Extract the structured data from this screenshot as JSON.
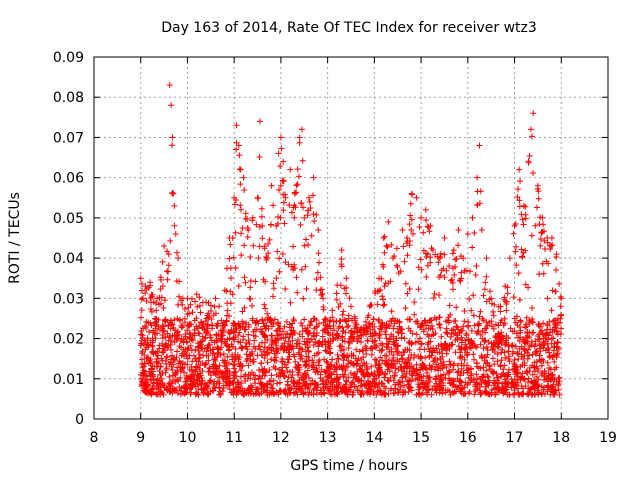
{
  "chart_data": {
    "type": "scatter",
    "title": "Day 163 of 2014, Rate Of TEC Index for receiver wtz3",
    "xlabel": "GPS time / hours",
    "ylabel": "ROTI / TECUs",
    "xlim": [
      8,
      19
    ],
    "ylim": [
      0,
      0.09
    ],
    "xticks": [
      "8",
      "9",
      "10",
      "11",
      "12",
      "13",
      "14",
      "15",
      "16",
      "17",
      "18",
      "19"
    ],
    "yticks": [
      "0",
      "0.01",
      "0.02",
      "0.03",
      "0.04",
      "0.05",
      "0.06",
      "0.07",
      "0.08",
      "0.09"
    ],
    "grid": true,
    "marker": "+",
    "color": "#ff0000",
    "series": [
      {
        "name": "ROTI",
        "peaks": [
          [
            9.0,
            0.035
          ],
          [
            9.1,
            0.033
          ],
          [
            9.2,
            0.034
          ],
          [
            9.35,
            0.03
          ],
          [
            9.5,
            0.043
          ],
          [
            9.6,
            0.041
          ],
          [
            9.62,
            0.083
          ],
          [
            9.65,
            0.078
          ],
          [
            9.68,
            0.07
          ],
          [
            9.7,
            0.056
          ],
          [
            9.72,
            0.053
          ],
          [
            9.75,
            0.046
          ],
          [
            9.8,
            0.04
          ],
          [
            9.9,
            0.03
          ],
          [
            10.0,
            0.03
          ],
          [
            10.2,
            0.031
          ],
          [
            10.4,
            0.029
          ],
          [
            10.6,
            0.03
          ],
          [
            10.8,
            0.032
          ],
          [
            10.9,
            0.045
          ],
          [
            11.0,
            0.055
          ],
          [
            11.05,
            0.073
          ],
          [
            11.1,
            0.068
          ],
          [
            11.2,
            0.06
          ],
          [
            11.3,
            0.047
          ],
          [
            11.4,
            0.05
          ],
          [
            11.5,
            0.055
          ],
          [
            11.55,
            0.074
          ],
          [
            11.6,
            0.048
          ],
          [
            11.7,
            0.04
          ],
          [
            11.8,
            0.058
          ],
          [
            11.9,
            0.048
          ],
          [
            11.95,
            0.066
          ],
          [
            12.0,
            0.07
          ],
          [
            12.05,
            0.064
          ],
          [
            12.1,
            0.055
          ],
          [
            12.2,
            0.062
          ],
          [
            12.3,
            0.056
          ],
          [
            12.4,
            0.07
          ],
          [
            12.45,
            0.072
          ],
          [
            12.5,
            0.05
          ],
          [
            12.6,
            0.055
          ],
          [
            12.7,
            0.06
          ],
          [
            12.8,
            0.047
          ],
          [
            12.9,
            0.03
          ],
          [
            13.0,
            0.023
          ],
          [
            13.1,
            0.027
          ],
          [
            13.3,
            0.042
          ],
          [
            13.4,
            0.035
          ],
          [
            13.5,
            0.028
          ],
          [
            13.7,
            0.022
          ],
          [
            13.9,
            0.028
          ],
          [
            14.1,
            0.035
          ],
          [
            14.2,
            0.045
          ],
          [
            14.3,
            0.049
          ],
          [
            14.4,
            0.04
          ],
          [
            14.6,
            0.047
          ],
          [
            14.7,
            0.045
          ],
          [
            14.8,
            0.056
          ],
          [
            14.9,
            0.055
          ],
          [
            15.0,
            0.05
          ],
          [
            15.1,
            0.052
          ],
          [
            15.2,
            0.048
          ],
          [
            15.4,
            0.04
          ],
          [
            15.5,
            0.045
          ],
          [
            15.6,
            0.038
          ],
          [
            15.7,
            0.042
          ],
          [
            15.8,
            0.047
          ],
          [
            15.9,
            0.04
          ],
          [
            16.0,
            0.046
          ],
          [
            16.1,
            0.05
          ],
          [
            16.2,
            0.06
          ],
          [
            16.25,
            0.068
          ],
          [
            16.3,
            0.047
          ],
          [
            16.4,
            0.04
          ],
          [
            16.5,
            0.03
          ],
          [
            16.7,
            0.028
          ],
          [
            16.8,
            0.033
          ],
          [
            16.9,
            0.04
          ],
          [
            17.0,
            0.048
          ],
          [
            17.1,
            0.062
          ],
          [
            17.2,
            0.053
          ],
          [
            17.35,
            0.072
          ],
          [
            17.4,
            0.076
          ],
          [
            17.5,
            0.058
          ],
          [
            17.6,
            0.05
          ],
          [
            17.7,
            0.045
          ],
          [
            17.8,
            0.045
          ],
          [
            17.9,
            0.041
          ],
          [
            18.0,
            0.03
          ]
        ],
        "floor_range": [
          0.006,
          0.025
        ],
        "point_count": 3200
      }
    ]
  }
}
